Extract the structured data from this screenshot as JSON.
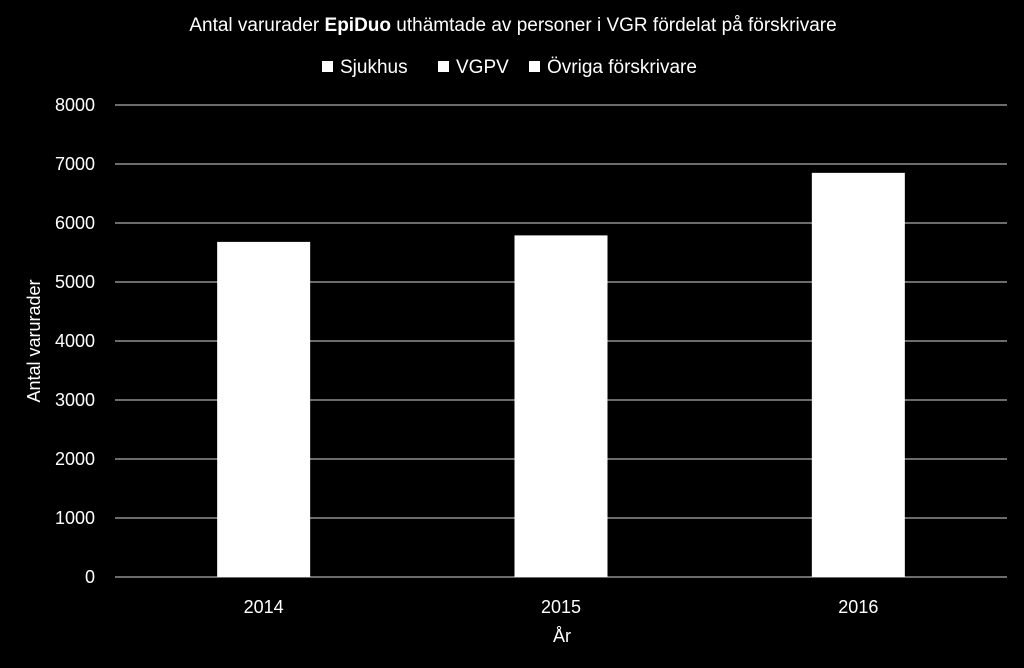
{
  "colors": {
    "background": "#000000",
    "foreground": "#ffffff",
    "gridline": "#d9d9d9"
  },
  "chart_data": {
    "type": "bar",
    "title_parts": [
      {
        "text": "Antal varurader ",
        "bold": false
      },
      {
        "text": "EpiDuo",
        "bold": true
      },
      {
        "text": " uthämtade av personer i VGR fördelat på förskrivare",
        "bold": false
      }
    ],
    "legend_position": "top",
    "categories": [
      "2014",
      "2015",
      "2016"
    ],
    "series": [
      {
        "name": "Sjukhus",
        "values": [
          0,
          0,
          0
        ],
        "color": "#ffffff"
      },
      {
        "name": "VGPV",
        "values": [
          0,
          0,
          0
        ],
        "color": "#ffffff"
      },
      {
        "name": "Övriga förskrivare",
        "values": [
          5680,
          5790,
          6850
        ],
        "color": "#ffffff"
      }
    ],
    "xlabel": "År",
    "ylabel": "Antal varurader",
    "ylim": [
      0,
      8000
    ],
    "yticks": [
      "0",
      "1000",
      "2000",
      "3000",
      "4000",
      "5000",
      "6000",
      "7000",
      "8000"
    ],
    "grid": true
  }
}
